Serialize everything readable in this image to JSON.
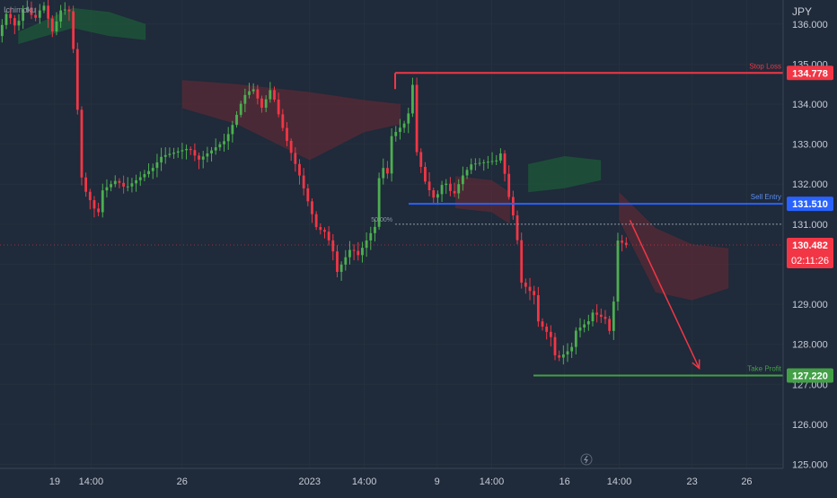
{
  "indicator_label": "Ichimoku",
  "currency_label": "JPY",
  "annotations": {
    "stop_loss": {
      "label": "Stop Loss",
      "price": 134.778,
      "price_label": "134.778",
      "color": "#f23645"
    },
    "sell_entry": {
      "label": "Sell Entry",
      "price": 131.51,
      "price_label": "131.510",
      "color": "#2962ff"
    },
    "take_profit": {
      "label": "Take Profit",
      "price": 127.22,
      "price_label": "127.220",
      "color": "#43a047"
    },
    "fib_50": {
      "label": "50.00%",
      "price": 131.0
    },
    "current_price": {
      "price": 130.482,
      "price_label": "130.482",
      "countdown": "02:11:26",
      "color": "#f23645"
    },
    "projection_arrow": {
      "from_date": "2023-01-19",
      "from_price": 131.1,
      "to_date": "2023-01-23",
      "to_price": 127.4,
      "color": "#f23645"
    }
  },
  "chart_data": {
    "type": "candlestick",
    "price_axis": {
      "range": [
        124.9,
        136.6
      ],
      "ticks": [
        "125.000",
        "126.000",
        "127.000",
        "128.000",
        "129.000",
        "130.000",
        "131.000",
        "132.000",
        "133.000",
        "134.000",
        "135.000",
        "136.000"
      ]
    },
    "time_axis": {
      "range": [
        "2022-12-16",
        "2023-01-28"
      ],
      "ticks": [
        {
          "date": "2022-12-19",
          "label": "19"
        },
        {
          "date": "2022-12-21",
          "label": "14:00"
        },
        {
          "date": "2022-12-26",
          "label": "26"
        },
        {
          "date": "2023-01-02",
          "label": "2023"
        },
        {
          "date": "2023-01-05",
          "label": "14:00"
        },
        {
          "date": "2023-01-09",
          "label": "9"
        },
        {
          "date": "2023-01-12",
          "label": "14:00"
        },
        {
          "date": "2023-01-16",
          "label": "16"
        },
        {
          "date": "2023-01-19",
          "label": "14:00"
        },
        {
          "date": "2023-01-23",
          "label": "23"
        },
        {
          "date": "2023-01-26",
          "label": "26"
        }
      ]
    },
    "colors": {
      "up": "#26a69a",
      "bull_candle": "#4caf50",
      "bear_candle": "#f23645",
      "cloud_bull": "#1e5a3a",
      "cloud_bear": "#5a2a36"
    },
    "price_path": [
      [
        "2022-12-16",
        135.7
      ],
      [
        "2022-12-16",
        136.3
      ],
      [
        "2022-12-17",
        135.9
      ],
      [
        "2022-12-17",
        136.5
      ],
      [
        "2022-12-18",
        136.1
      ],
      [
        "2022-12-18",
        136.5
      ],
      [
        "2022-12-19",
        135.8
      ],
      [
        "2022-12-19",
        136.4
      ],
      [
        "2022-12-20",
        136.3
      ],
      [
        "2022-12-20",
        133.0
      ],
      [
        "2022-12-20",
        132.0
      ],
      [
        "2022-12-21",
        131.2
      ],
      [
        "2022-12-21",
        131.8
      ],
      [
        "2022-12-22",
        132.1
      ],
      [
        "2022-12-23",
        131.9
      ],
      [
        "2022-12-24",
        132.4
      ],
      [
        "2022-12-25",
        132.7
      ],
      [
        "2022-12-26",
        132.9
      ],
      [
        "2022-12-27",
        132.6
      ],
      [
        "2022-12-28",
        133.1
      ],
      [
        "2022-12-29",
        133.6
      ],
      [
        "2022-12-29",
        134.2
      ],
      [
        "2022-12-30",
        134.4
      ],
      [
        "2022-12-30",
        133.9
      ],
      [
        "2022-12-31",
        134.4
      ],
      [
        "2022-12-31",
        133.6
      ],
      [
        "2023-01-01",
        132.9
      ],
      [
        "2023-01-01",
        132.3
      ],
      [
        "2023-01-02",
        131.6
      ],
      [
        "2023-01-02",
        130.9
      ],
      [
        "2023-01-03",
        130.8
      ],
      [
        "2023-01-03",
        130.2
      ],
      [
        "2023-01-03",
        129.8
      ],
      [
        "2023-01-04",
        130.5
      ],
      [
        "2023-01-04",
        130.1
      ],
      [
        "2023-01-05",
        130.8
      ],
      [
        "2023-01-05",
        130.4
      ],
      [
        "2023-01-05",
        131.2
      ],
      [
        "2023-01-06",
        132.5
      ],
      [
        "2023-01-06",
        132.2
      ],
      [
        "2023-01-06",
        133.2
      ],
      [
        "2023-01-07",
        133.6
      ],
      [
        "2023-01-07",
        134.1
      ],
      [
        "2023-01-07",
        134.7
      ],
      [
        "2023-01-08",
        132.8
      ],
      [
        "2023-01-08",
        132.0
      ],
      [
        "2023-01-09",
        131.6
      ],
      [
        "2023-01-09",
        132.1
      ],
      [
        "2023-01-10",
        131.7
      ],
      [
        "2023-01-10",
        132.2
      ],
      [
        "2023-01-11",
        132.5
      ],
      [
        "2023-01-12",
        132.6
      ],
      [
        "2023-01-12",
        132.8
      ],
      [
        "2023-01-12",
        132.5
      ],
      [
        "2023-01-13",
        131.8
      ],
      [
        "2023-01-13",
        130.8
      ],
      [
        "2023-01-13",
        129.6
      ],
      [
        "2023-01-14",
        129.2
      ],
      [
        "2023-01-14",
        128.6
      ],
      [
        "2023-01-15",
        128.1
      ],
      [
        "2023-01-15",
        127.6
      ],
      [
        "2023-01-16",
        127.9
      ],
      [
        "2023-01-16",
        128.3
      ],
      [
        "2023-01-17",
        128.6
      ],
      [
        "2023-01-17",
        128.8
      ],
      [
        "2023-01-18",
        128.6
      ],
      [
        "2023-01-18",
        128.2
      ],
      [
        "2023-01-18",
        128.6
      ],
      [
        "2023-01-18",
        129.4
      ],
      [
        "2023-01-18",
        131.0
      ],
      [
        "2023-01-19",
        130.6
      ],
      [
        "2023-01-19",
        130.482
      ]
    ],
    "cloud_segments": [
      {
        "kind": "bull",
        "upper": [
          [
            "2022-12-17",
            135.8
          ],
          [
            "2022-12-20",
            136.4
          ],
          [
            "2022-12-22",
            136.3
          ],
          [
            "2022-12-24",
            136.0
          ]
        ],
        "lower": [
          [
            "2022-12-24",
            135.6
          ],
          [
            "2022-12-22",
            135.7
          ],
          [
            "2022-12-20",
            135.9
          ],
          [
            "2022-12-17",
            135.5
          ]
        ]
      },
      {
        "kind": "bear",
        "upper": [
          [
            "2022-12-26",
            134.6
          ],
          [
            "2022-12-29",
            134.5
          ],
          [
            "2023-01-02",
            134.3
          ],
          [
            "2023-01-05",
            134.1
          ],
          [
            "2023-01-07",
            134.0
          ]
        ],
        "lower": [
          [
            "2023-01-07",
            133.5
          ],
          [
            "2023-01-05",
            133.3
          ],
          [
            "2023-01-02",
            132.6
          ],
          [
            "2022-12-29",
            133.5
          ],
          [
            "2022-12-26",
            133.9
          ]
        ]
      },
      {
        "kind": "bear",
        "upper": [
          [
            "2023-01-10",
            132.2
          ],
          [
            "2023-01-12",
            132.1
          ],
          [
            "2023-01-13",
            131.8
          ]
        ],
        "lower": [
          [
            "2023-01-13",
            131.0
          ],
          [
            "2023-01-12",
            131.3
          ],
          [
            "2023-01-10",
            131.4
          ]
        ]
      },
      {
        "kind": "bull",
        "upper": [
          [
            "2023-01-14",
            132.5
          ],
          [
            "2023-01-16",
            132.7
          ],
          [
            "2023-01-18",
            132.6
          ]
        ],
        "lower": [
          [
            "2023-01-18",
            132.1
          ],
          [
            "2023-01-16",
            131.9
          ],
          [
            "2023-01-14",
            131.8
          ]
        ]
      },
      {
        "kind": "bear",
        "upper": [
          [
            "2023-01-19",
            131.8
          ],
          [
            "2023-01-21",
            130.9
          ],
          [
            "2023-01-23",
            130.5
          ],
          [
            "2023-01-25",
            130.4
          ]
        ],
        "lower": [
          [
            "2023-01-25",
            129.4
          ],
          [
            "2023-01-23",
            129.1
          ],
          [
            "2023-01-21",
            129.3
          ],
          [
            "2023-01-19",
            131.1
          ]
        ]
      }
    ]
  }
}
